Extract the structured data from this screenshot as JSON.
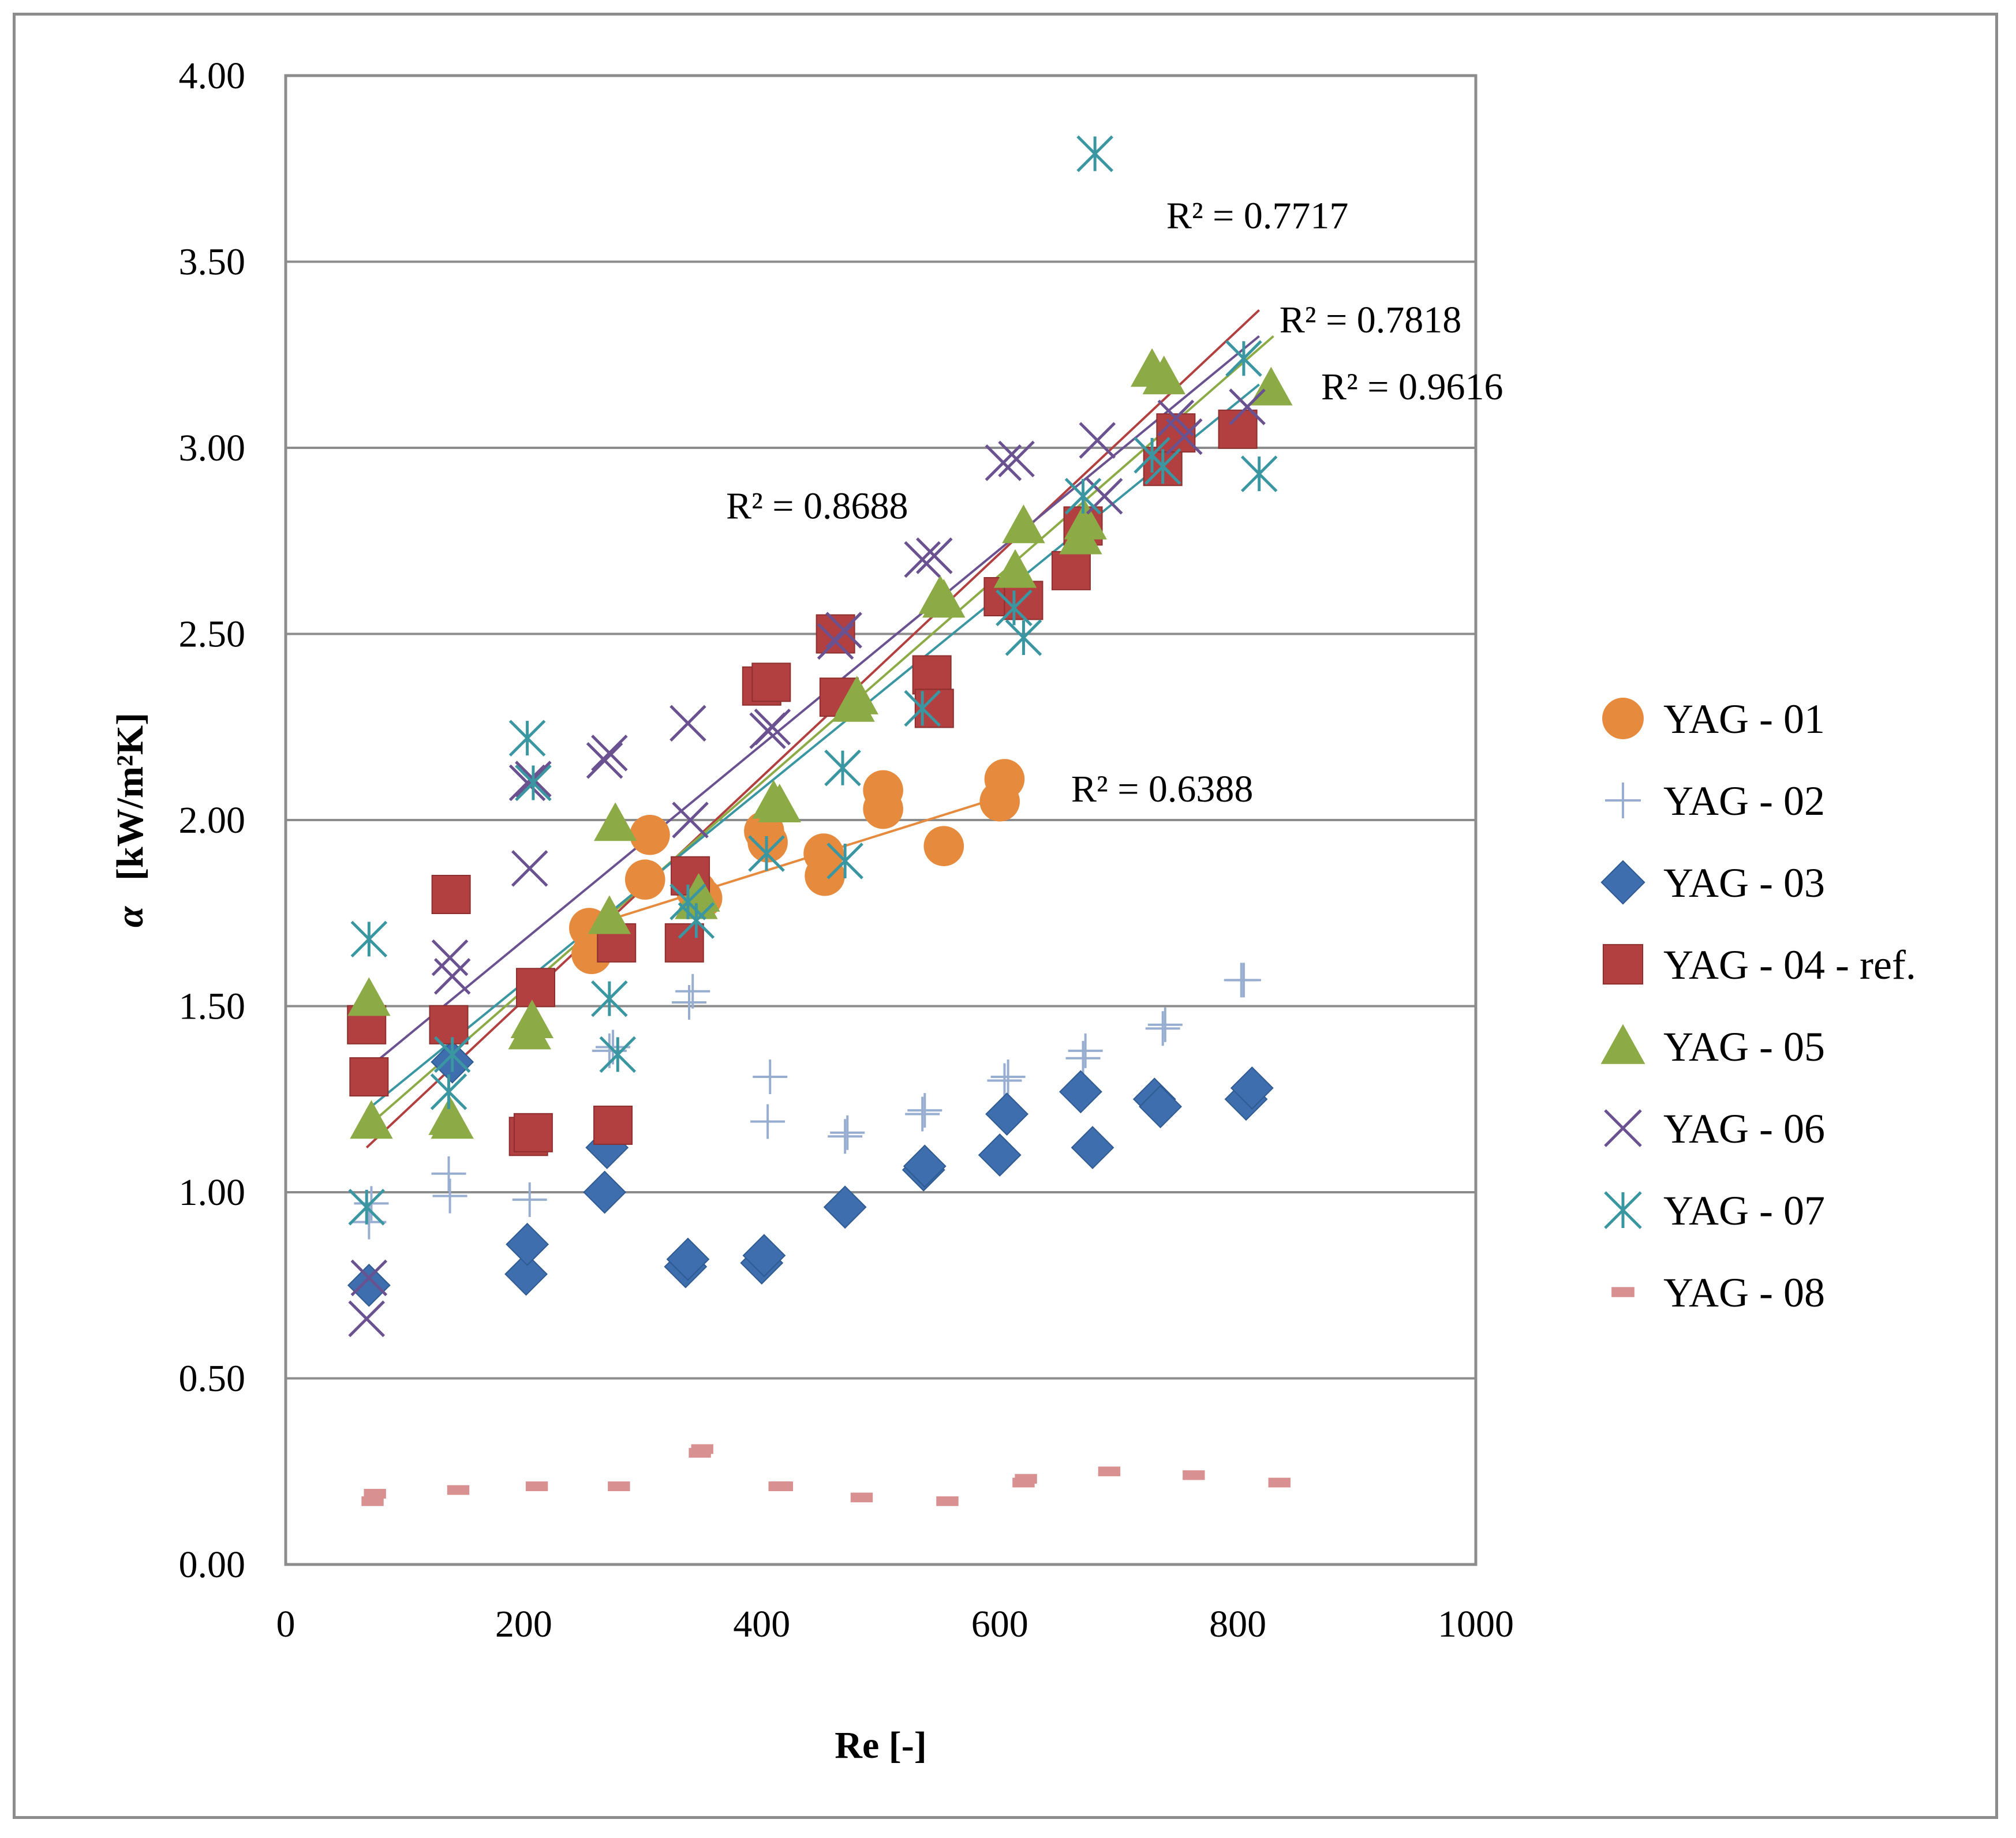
{
  "chart_data": {
    "type": "scatter",
    "title": "",
    "xlabel": "Re [-]",
    "ylabel_symbol": "α",
    "ylabel": "[kW/m²K]",
    "xlim": [
      0,
      1000
    ],
    "ylim": [
      0,
      4
    ],
    "x_ticks": [
      0,
      200,
      400,
      600,
      800,
      1000
    ],
    "y_ticks": [
      0,
      0.5,
      1,
      1.5,
      2,
      2.5,
      3,
      3.5,
      4
    ],
    "x_tick_labels": [
      "0",
      "200",
      "400",
      "600",
      "800",
      "1000"
    ],
    "y_tick_labels": [
      "0.00",
      "0.50",
      "1.00",
      "1.50",
      "2.00",
      "2.50",
      "3.00",
      "3.50",
      "4.00"
    ],
    "grid": "horizontal",
    "legend_position": "right",
    "series": [
      {
        "name": "YAG - 01",
        "marker": "circle",
        "color": "#e68a3d",
        "points": [
          [
            255,
            1.71
          ],
          [
            257,
            1.64
          ],
          [
            302,
            1.84
          ],
          [
            306,
            1.96
          ],
          [
            345,
            1.81
          ],
          [
            350,
            1.79
          ],
          [
            402,
            1.97
          ],
          [
            405,
            1.94
          ],
          [
            452,
            1.91
          ],
          [
            453,
            1.85
          ],
          [
            502,
            2.08
          ],
          [
            502,
            2.03
          ],
          [
            553,
            1.93
          ],
          [
            600,
            2.05
          ],
          [
            604,
            2.11
          ]
        ],
        "trendline": [
          [
            255,
            1.715
          ],
          [
            604,
            2.065
          ]
        ]
      },
      {
        "name": "YAG - 02",
        "marker": "plus",
        "color": "#98aed0",
        "points": [
          [
            70,
            0.92
          ],
          [
            72,
            0.97
          ],
          [
            137,
            1.05
          ],
          [
            138,
            0.99
          ],
          [
            205,
            0.98
          ],
          [
            272,
            1.38
          ],
          [
            275,
            1.39
          ],
          [
            339,
            1.51
          ],
          [
            342,
            1.54
          ],
          [
            405,
            1.19
          ],
          [
            407,
            1.31
          ],
          [
            470,
            1.15
          ],
          [
            472,
            1.16
          ],
          [
            535,
            1.21
          ],
          [
            537,
            1.22
          ],
          [
            604,
            1.3
          ],
          [
            607,
            1.31
          ],
          [
            670,
            1.36
          ],
          [
            672,
            1.38
          ],
          [
            737,
            1.44
          ],
          [
            739,
            1.45
          ],
          [
            803,
            1.57
          ],
          [
            805,
            1.57
          ]
        ]
      },
      {
        "name": "YAG - 03",
        "marker": "diamond",
        "color": "#3e6eae",
        "points": [
          [
            70,
            0.75
          ],
          [
            140,
            1.35
          ],
          [
            202,
            0.78
          ],
          [
            203,
            0.86
          ],
          [
            268,
            1.0
          ],
          [
            270,
            1.12
          ],
          [
            336,
            0.8
          ],
          [
            338,
            0.82
          ],
          [
            400,
            0.81
          ],
          [
            402,
            0.83
          ],
          [
            470,
            0.96
          ],
          [
            536,
            1.06
          ],
          [
            537,
            1.07
          ],
          [
            600,
            1.1
          ],
          [
            606,
            1.21
          ],
          [
            668,
            1.27
          ],
          [
            678,
            1.12
          ],
          [
            730,
            1.25
          ],
          [
            735,
            1.23
          ],
          [
            807,
            1.25
          ],
          [
            812,
            1.28
          ]
        ]
      },
      {
        "name": "YAG - 04 - ref.",
        "marker": "square",
        "color": "#b24040",
        "points": [
          [
            68,
            1.45
          ],
          [
            70,
            1.31
          ],
          [
            137,
            1.45
          ],
          [
            139,
            1.8
          ],
          [
            204,
            1.15
          ],
          [
            208,
            1.16
          ],
          [
            210,
            1.55
          ],
          [
            275,
            1.18
          ],
          [
            278,
            1.67
          ],
          [
            335,
            1.67
          ],
          [
            340,
            1.85
          ],
          [
            400,
            2.36
          ],
          [
            408,
            2.37
          ],
          [
            462,
            2.5
          ],
          [
            465,
            2.33
          ],
          [
            543,
            2.39
          ],
          [
            545,
            2.3
          ],
          [
            603,
            2.6
          ],
          [
            620,
            2.59
          ],
          [
            660,
            2.67
          ],
          [
            670,
            2.79
          ],
          [
            737,
            2.95
          ],
          [
            748,
            3.04
          ],
          [
            800,
            3.05
          ]
        ],
        "trendline": [
          [
            68,
            1.12
          ],
          [
            818,
            3.37
          ]
        ]
      },
      {
        "name": "YAG - 05",
        "marker": "triangle",
        "color": "#8caa45",
        "points": [
          [
            70,
            1.52
          ],
          [
            72,
            1.19
          ],
          [
            138,
            1.2
          ],
          [
            140,
            1.19
          ],
          [
            205,
            1.43
          ],
          [
            207,
            1.46
          ],
          [
            272,
            1.74
          ],
          [
            277,
            1.99
          ],
          [
            345,
            1.78
          ],
          [
            347,
            1.8
          ],
          [
            410,
            2.05
          ],
          [
            415,
            2.04
          ],
          [
            477,
            2.31
          ],
          [
            480,
            2.33
          ],
          [
            550,
            2.6
          ],
          [
            553,
            2.59
          ],
          [
            613,
            2.67
          ],
          [
            620,
            2.79
          ],
          [
            668,
            2.76
          ],
          [
            672,
            2.8
          ],
          [
            728,
            3.21
          ],
          [
            738,
            3.19
          ],
          [
            828,
            3.16
          ]
        ],
        "trendline": [
          [
            70,
            1.18
          ],
          [
            830,
            3.3
          ]
        ]
      },
      {
        "name": "YAG - 06",
        "marker": "x",
        "color": "#6a5190",
        "points": [
          [
            68,
            0.66
          ],
          [
            70,
            0.77
          ],
          [
            138,
            1.63
          ],
          [
            140,
            1.58
          ],
          [
            203,
            2.1
          ],
          [
            205,
            1.87
          ],
          [
            208,
            2.11
          ],
          [
            268,
            2.16
          ],
          [
            272,
            2.18
          ],
          [
            338,
            2.26
          ],
          [
            340,
            2.0
          ],
          [
            405,
            2.24
          ],
          [
            409,
            2.25
          ],
          [
            462,
            2.48
          ],
          [
            469,
            2.51
          ],
          [
            535,
            2.7
          ],
          [
            545,
            2.71
          ],
          [
            603,
            2.96
          ],
          [
            614,
            2.97
          ],
          [
            682,
            3.02
          ],
          [
            688,
            2.87
          ],
          [
            748,
            3.08
          ],
          [
            755,
            3.03
          ],
          [
            808,
            3.11
          ]
        ],
        "trendline": [
          [
            68,
            1.33
          ],
          [
            818,
            3.3
          ]
        ]
      },
      {
        "name": "YAG - 07",
        "marker": "asterisk",
        "color": "#3a96a0",
        "points": [
          [
            68,
            0.96
          ],
          [
            70,
            1.68
          ],
          [
            137,
            1.27
          ],
          [
            140,
            1.37
          ],
          [
            203,
            2.22
          ],
          [
            208,
            2.1
          ],
          [
            272,
            1.52
          ],
          [
            279,
            1.37
          ],
          [
            338,
            1.78
          ],
          [
            345,
            1.73
          ],
          [
            404,
            1.91
          ],
          [
            468,
            2.14
          ],
          [
            470,
            1.89
          ],
          [
            535,
            2.3
          ],
          [
            612,
            2.57
          ],
          [
            620,
            2.49
          ],
          [
            670,
            2.87
          ],
          [
            680,
            3.79
          ],
          [
            728,
            2.98
          ],
          [
            737,
            2.95
          ],
          [
            805,
            3.24
          ],
          [
            818,
            2.93
          ]
        ],
        "trendline": [
          [
            68,
            1.22
          ],
          [
            818,
            3.17
          ]
        ]
      },
      {
        "name": "YAG - 08",
        "marker": "dash",
        "color": "#d89090",
        "points": [
          [
            73,
            0.17
          ],
          [
            75,
            0.19
          ],
          [
            145,
            0.2
          ],
          [
            211,
            0.21
          ],
          [
            280,
            0.21
          ],
          [
            348,
            0.3
          ],
          [
            350,
            0.31
          ],
          [
            415,
            0.21
          ],
          [
            417,
            0.21
          ],
          [
            484,
            0.18
          ],
          [
            556,
            0.17
          ],
          [
            620,
            0.22
          ],
          [
            622,
            0.23
          ],
          [
            692,
            0.25
          ],
          [
            763,
            0.24
          ],
          [
            835,
            0.22
          ]
        ]
      }
    ],
    "annotations": [
      {
        "text": "R² = 0.7717",
        "x": 740,
        "y": 3.59
      },
      {
        "text": "R² = 0.7818",
        "x": 835,
        "y": 3.31
      },
      {
        "text": "R² = 0.9616",
        "x": 870,
        "y": 3.13
      },
      {
        "text": "R² = 0.8688",
        "x": 370,
        "y": 2.81
      },
      {
        "text": "R² = 0.6388",
        "x": 660,
        "y": 2.05
      }
    ]
  }
}
